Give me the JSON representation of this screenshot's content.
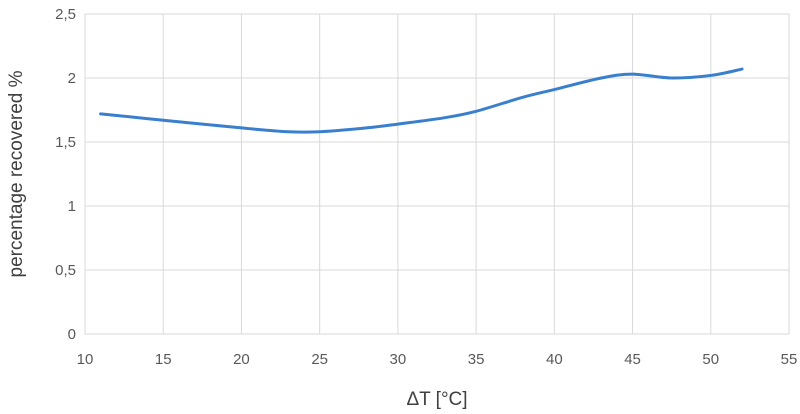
{
  "chart_data": {
    "type": "line",
    "title": "",
    "xlabel": "ΔT [°C]",
    "ylabel": "percentage recovered %",
    "xlim": [
      10,
      55
    ],
    "ylim": [
      0,
      2.5
    ],
    "x_ticks": [
      "10",
      "15",
      "20",
      "25",
      "30",
      "35",
      "40",
      "45",
      "50",
      "55"
    ],
    "y_ticks": [
      "0",
      "0,5",
      "1",
      "1,5",
      "2",
      "2,5"
    ],
    "grid": true,
    "legend": "none",
    "series": [
      {
        "color": "#3a7fce",
        "x": [
          11,
          15,
          20,
          23,
          25,
          28,
          30,
          33,
          35,
          38,
          40,
          43,
          45,
          47.5,
          50,
          52
        ],
        "y": [
          1.72,
          1.67,
          1.61,
          1.58,
          1.58,
          1.61,
          1.64,
          1.69,
          1.74,
          1.85,
          1.91,
          2.0,
          2.03,
          2.0,
          2.02,
          2.07
        ]
      }
    ]
  }
}
